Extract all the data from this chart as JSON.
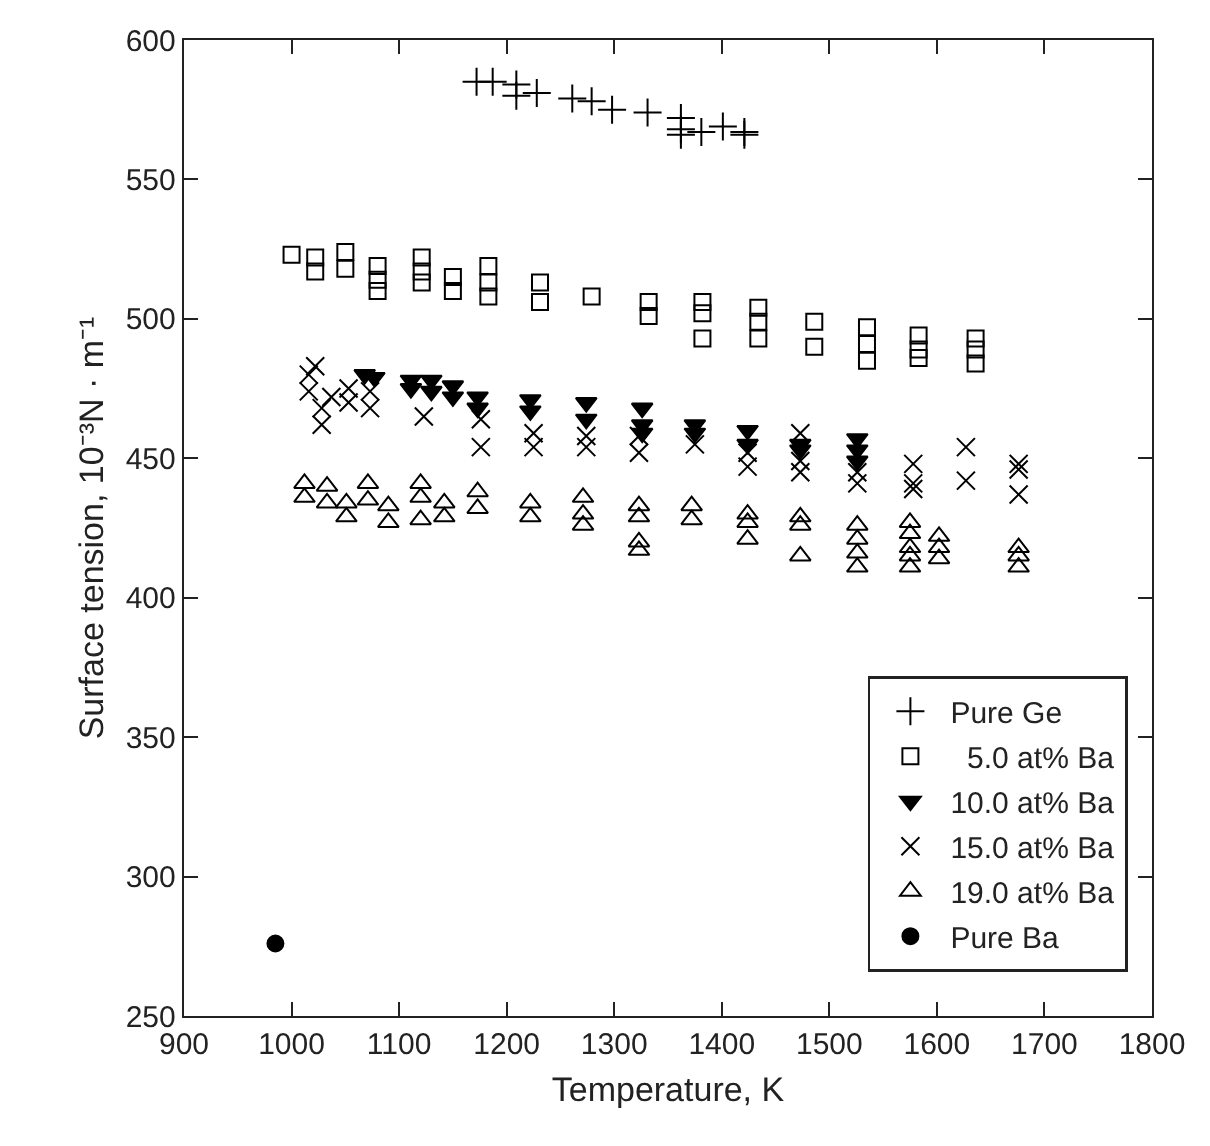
{
  "chart_data": {
    "type": "scatter",
    "xlabel": "Temperature, K",
    "ylabel": "Surface tension, 10⁻³N · m⁻¹",
    "xlim": [
      900,
      1800
    ],
    "xticks": [
      900,
      1000,
      1100,
      1200,
      1300,
      1400,
      1500,
      1600,
      1700,
      1800
    ],
    "ylim": [
      250,
      600
    ],
    "yticks": [
      250,
      300,
      350,
      400,
      450,
      500,
      550,
      600
    ],
    "legend": "bottom right",
    "series": [
      {
        "name": "Pure Ge",
        "color": "#000000",
        "marker": "cross",
        "x": [
          1172,
          1187,
          1209,
          1209,
          1228,
          1261,
          1279,
          1298,
          1331,
          1362,
          1362,
          1362,
          1381,
          1401,
          1421,
          1421
        ],
        "values": [
          585,
          585,
          584,
          580,
          581,
          579,
          578,
          575,
          574,
          572,
          568,
          566,
          567,
          569,
          567,
          566
        ]
      },
      {
        "name": "  5.0 at% Ba",
        "color": "#000000",
        "marker": "square",
        "x": [
          1000,
          1022,
          1022,
          1050,
          1050,
          1080,
          1080,
          1080,
          1121,
          1121,
          1121,
          1150,
          1150,
          1183,
          1183,
          1183,
          1231,
          1231,
          1279,
          1332,
          1332,
          1382,
          1382,
          1382,
          1434,
          1434,
          1434,
          1486,
          1486,
          1535,
          1535,
          1535,
          1583,
          1583,
          1583,
          1636,
          1636,
          1636
        ],
        "values": [
          523,
          522,
          517,
          524,
          518,
          519,
          514,
          510,
          522,
          517,
          513,
          515,
          510,
          519,
          513,
          508,
          513,
          506,
          508,
          506,
          501,
          506,
          502,
          493,
          504,
          499,
          493,
          499,
          490,
          497,
          491,
          485,
          494,
          489,
          486,
          493,
          489,
          484
        ]
      },
      {
        "name": "10.0 at% Ba",
        "color": "#000000",
        "marker": "triangle-down",
        "x": [
          1068,
          1077,
          1111,
          1111,
          1130,
          1130,
          1150,
          1150,
          1173,
          1173,
          1222,
          1222,
          1274,
          1274,
          1326,
          1326,
          1326,
          1375,
          1375,
          1424,
          1424,
          1473,
          1473,
          1526,
          1526,
          1526
        ],
        "values": [
          480,
          479,
          478,
          475,
          478,
          474,
          476,
          472,
          472,
          468,
          471,
          467,
          470,
          464,
          468,
          462,
          459,
          462,
          459,
          460,
          455,
          455,
          453,
          457,
          453,
          449
        ]
      },
      {
        "name": "15.0 at% Ba",
        "color": "#000000",
        "marker": "x",
        "x": [
          1016,
          1016,
          1022,
          1028,
          1028,
          1037,
          1053,
          1053,
          1073,
          1073,
          1123,
          1176,
          1176,
          1225,
          1225,
          1274,
          1274,
          1323,
          1323,
          1375,
          1424,
          1424,
          1473,
          1473,
          1473,
          1526,
          1526,
          1578,
          1578,
          1578,
          1627,
          1627,
          1676,
          1676,
          1676
        ],
        "values": [
          480,
          474,
          483,
          468,
          462,
          472,
          475,
          470,
          474,
          468,
          465,
          464,
          454,
          459,
          454,
          458,
          454,
          458,
          452,
          455,
          452,
          447,
          459,
          449,
          445,
          445,
          441,
          448,
          441,
          439,
          454,
          442,
          448,
          446,
          437
        ]
      },
      {
        "name": "19.0 at% Ba",
        "color": "#000000",
        "marker": "triangle",
        "x": [
          1012,
          1012,
          1033,
          1033,
          1051,
          1051,
          1071,
          1071,
          1090,
          1090,
          1120,
          1120,
          1120,
          1142,
          1142,
          1173,
          1173,
          1222,
          1222,
          1271,
          1271,
          1271,
          1323,
          1323,
          1323,
          1323,
          1372,
          1372,
          1424,
          1424,
          1424,
          1473,
          1473,
          1473,
          1526,
          1526,
          1526,
          1526,
          1575,
          1575,
          1575,
          1575,
          1575,
          1602,
          1602,
          1602,
          1676,
          1676,
          1676
        ],
        "values": [
          441,
          436,
          440,
          434,
          434,
          429,
          441,
          435,
          433,
          427,
          441,
          436,
          428,
          434,
          429,
          438,
          432,
          434,
          429,
          436,
          430,
          426,
          433,
          429,
          420,
          417,
          433,
          428,
          430,
          427,
          421,
          429,
          426,
          415,
          426,
          421,
          416,
          411,
          427,
          423,
          418,
          415,
          411,
          422,
          418,
          414,
          418,
          415,
          411
        ]
      },
      {
        "name": "Pure Ba",
        "color": "#000000",
        "marker": "circle",
        "x": [
          985
        ],
        "values": [
          276
        ]
      }
    ]
  }
}
